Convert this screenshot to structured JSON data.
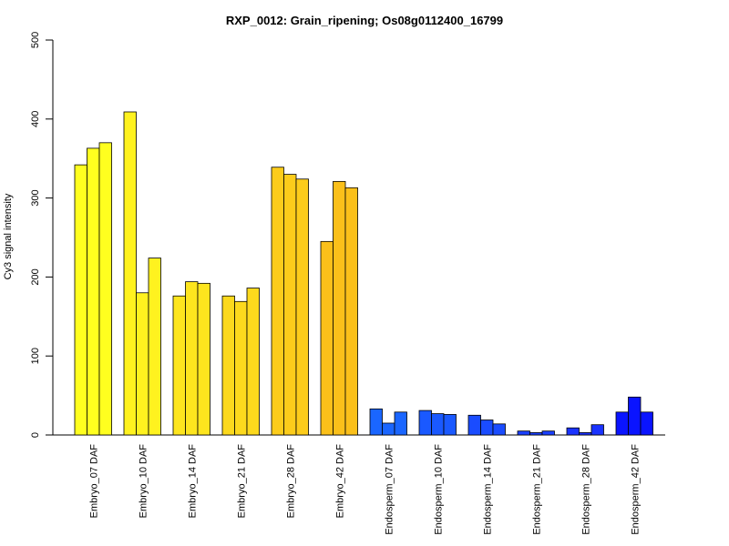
{
  "chart_data": {
    "type": "bar",
    "title": "RXP_0012: Grain_ripening; Os08g0112400_16799",
    "xlabel": "",
    "ylabel": "Cy3 signal intensity",
    "ylim": [
      0,
      500
    ],
    "yticks": [
      0,
      100,
      200,
      300,
      400,
      500
    ],
    "grid": false,
    "categories": [
      "Embryo_07 DAF",
      "Embryo_10 DAF",
      "Embryo_14 DAF",
      "Embryo_21 DAF",
      "Embryo_28 DAF",
      "Embryo_42 DAF",
      "Endosperm_07 DAF",
      "Endosperm_10 DAF",
      "Endosperm_14 DAF",
      "Endosperm_21 DAF",
      "Endosperm_28 DAF",
      "Endosperm_42 DAF"
    ],
    "colors": [
      "#ffff1f",
      "#fff21f",
      "#fde51e",
      "#fcd91d",
      "#fccc1b",
      "#fbc01a",
      "#1a66ff",
      "#1a59ff",
      "#1a4cff",
      "#1a40ff",
      "#1a33ff",
      "#0a14ff"
    ],
    "values": [
      [
        342,
        363,
        370
      ],
      [
        409,
        180,
        224
      ],
      [
        176,
        194,
        192
      ],
      [
        176,
        169,
        186
      ],
      [
        339,
        330,
        324
      ],
      [
        245,
        321,
        313
      ],
      [
        33,
        15,
        29
      ],
      [
        31,
        27,
        26
      ],
      [
        25,
        19,
        14
      ],
      [
        5,
        3,
        5
      ],
      [
        9,
        3,
        13
      ],
      [
        29,
        48,
        29
      ]
    ]
  }
}
